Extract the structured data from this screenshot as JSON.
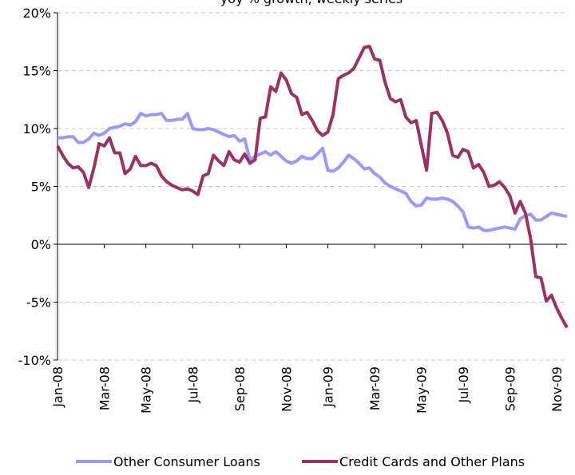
{
  "chart_data": {
    "type": "line",
    "title": "yoy % growth, weekly series",
    "categories": [
      "Jan-08",
      null,
      null,
      null,
      null,
      null,
      null,
      null,
      null,
      "Mar-08",
      null,
      null,
      null,
      null,
      null,
      null,
      null,
      "May-08",
      null,
      null,
      null,
      null,
      null,
      null,
      null,
      null,
      "Jul-08",
      null,
      null,
      null,
      null,
      null,
      null,
      null,
      null,
      "Sep-08",
      null,
      null,
      null,
      null,
      null,
      null,
      null,
      null,
      "Nov-08",
      null,
      null,
      null,
      null,
      null,
      null,
      null,
      "Jan-09",
      null,
      null,
      null,
      null,
      null,
      null,
      null,
      null,
      "Mar-09",
      null,
      null,
      null,
      null,
      null,
      null,
      null,
      null,
      "May-09",
      null,
      null,
      null,
      null,
      null,
      null,
      null,
      "Jul-09",
      null,
      null,
      null,
      null,
      null,
      null,
      null,
      null,
      "Sep-09",
      null,
      null,
      null,
      null,
      null,
      null,
      null,
      null,
      "Nov-09",
      null,
      null
    ],
    "series": [
      {
        "name": "Other Consumer Loans",
        "color": "#9999ff",
        "values": [
          9.2,
          9.2,
          9.3,
          9.3,
          8.8,
          8.8,
          9.1,
          9.6,
          9.4,
          9.6,
          10.0,
          10.1,
          10.2,
          10.4,
          10.3,
          10.6,
          11.3,
          11.1,
          11.2,
          11.2,
          11.3,
          10.7,
          10.7,
          10.8,
          10.8,
          11.3,
          10.0,
          9.9,
          9.9,
          10.0,
          9.9,
          9.7,
          9.5,
          9.3,
          9.4,
          8.9,
          9.1,
          7.3,
          7.6,
          7.8,
          8.0,
          7.7,
          8.0,
          7.6,
          7.2,
          7.0,
          7.2,
          7.6,
          7.4,
          7.4,
          7.8,
          8.3,
          6.4,
          6.3,
          6.6,
          7.1,
          7.7,
          7.4,
          7.0,
          6.5,
          6.6,
          6.1,
          5.8,
          5.3,
          5.0,
          4.8,
          4.6,
          4.4,
          3.7,
          3.3,
          3.4,
          4.0,
          3.9,
          3.9,
          4.0,
          3.9,
          3.7,
          3.3,
          2.8,
          1.5,
          1.4,
          1.5,
          1.2,
          1.2,
          1.3,
          1.4,
          1.5,
          1.4,
          1.3,
          2.2,
          2.5,
          2.6,
          2.1,
          2.1,
          2.4,
          2.7,
          2.6,
          2.5,
          2.4
        ]
      },
      {
        "name": "Credit Cards and Other Plans",
        "color": "#993366",
        "values": [
          8.5,
          7.7,
          7.0,
          6.6,
          6.7,
          6.2,
          4.9,
          6.6,
          8.7,
          8.5,
          9.2,
          7.9,
          7.9,
          6.1,
          6.5,
          7.6,
          6.8,
          6.8,
          7.0,
          6.8,
          5.9,
          5.4,
          5.1,
          4.9,
          4.7,
          4.8,
          4.6,
          4.3,
          5.9,
          6.1,
          7.7,
          7.2,
          6.8,
          8.0,
          7.3,
          7.1,
          7.8,
          7.0,
          7.3,
          10.9,
          11.0,
          13.6,
          13.2,
          14.8,
          14.2,
          13.0,
          12.7,
          11.2,
          11.4,
          10.7,
          9.8,
          9.4,
          9.7,
          11.2,
          14.3,
          14.6,
          14.8,
          15.2,
          16.1,
          17.0,
          17.1,
          16.0,
          15.9,
          14.0,
          12.6,
          12.3,
          12.5,
          11.0,
          10.5,
          10.7,
          8.5,
          6.4,
          11.3,
          11.4,
          10.7,
          9.6,
          7.7,
          7.5,
          8.2,
          8.0,
          6.6,
          6.9,
          6.2,
          5.0,
          5.1,
          5.4,
          4.9,
          4.2,
          2.7,
          3.7,
          2.7,
          0.5,
          -2.8,
          -2.9,
          -4.9,
          -4.4,
          -5.5,
          -6.4,
          -7.2
        ]
      }
    ],
    "ylim": [
      -10,
      20
    ],
    "yticks": [
      {
        "value": -10,
        "label": "-10%"
      },
      {
        "value": -5,
        "label": "-5%"
      },
      {
        "value": 0,
        "label": "0%"
      },
      {
        "value": 5,
        "label": "5%"
      },
      {
        "value": 10,
        "label": "10%"
      },
      {
        "value": 15,
        "label": "15%"
      },
      {
        "value": 20,
        "label": "20%"
      }
    ],
    "grid": true,
    "legend": "bottom"
  }
}
